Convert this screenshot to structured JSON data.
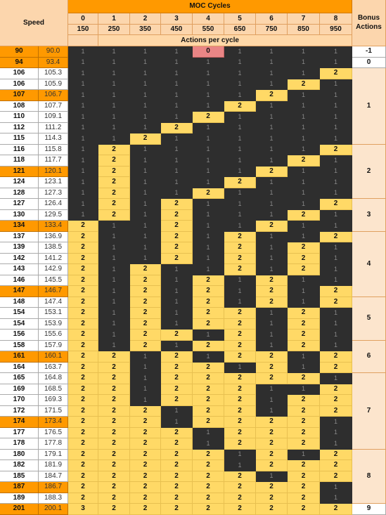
{
  "header": {
    "speed_label": "Speed",
    "moc_label": "MOC Cycles",
    "actions_label": "Actions per cycle",
    "bonus_label": "Bonus\nActions",
    "cycles": [
      "0",
      "1",
      "2",
      "3",
      "4",
      "5",
      "6",
      "7",
      "8"
    ],
    "cycle_values": [
      "150",
      "250",
      "350",
      "450",
      "550",
      "650",
      "750",
      "850",
      "950"
    ]
  },
  "rows": [
    {
      "speed": "90",
      "value": "90.0",
      "hl": true,
      "actions": [
        "1",
        "1",
        "1",
        "1",
        "0",
        "1",
        "1",
        "1",
        "1"
      ]
    },
    {
      "speed": "94",
      "value": "93.4",
      "hl": true,
      "actions": [
        "1",
        "1",
        "1",
        "1",
        "1",
        "1",
        "1",
        "1",
        "1"
      ]
    },
    {
      "speed": "106",
      "value": "105.3",
      "hl": false,
      "actions": [
        "1",
        "1",
        "1",
        "1",
        "1",
        "1",
        "1",
        "1",
        "2"
      ]
    },
    {
      "speed": "106",
      "value": "105.9",
      "hl": false,
      "actions": [
        "1",
        "1",
        "1",
        "1",
        "1",
        "1",
        "1",
        "2",
        "1"
      ]
    },
    {
      "speed": "107",
      "value": "106.7",
      "hl": true,
      "actions": [
        "1",
        "1",
        "1",
        "1",
        "1",
        "1",
        "2",
        "1",
        "1"
      ]
    },
    {
      "speed": "108",
      "value": "107.7",
      "hl": false,
      "actions": [
        "1",
        "1",
        "1",
        "1",
        "1",
        "2",
        "1",
        "1",
        "1"
      ]
    },
    {
      "speed": "110",
      "value": "109.1",
      "hl": false,
      "actions": [
        "1",
        "1",
        "1",
        "1",
        "2",
        "1",
        "1",
        "1",
        "1"
      ]
    },
    {
      "speed": "112",
      "value": "111.2",
      "hl": false,
      "actions": [
        "1",
        "1",
        "1",
        "2",
        "1",
        "1",
        "1",
        "1",
        "1"
      ]
    },
    {
      "speed": "115",
      "value": "114.3",
      "hl": false,
      "actions": [
        "1",
        "1",
        "2",
        "1",
        "1",
        "1",
        "1",
        "1",
        "1"
      ]
    },
    {
      "speed": "116",
      "value": "115.8",
      "hl": false,
      "actions": [
        "1",
        "2",
        "1",
        "1",
        "1",
        "1",
        "1",
        "1",
        "2"
      ]
    },
    {
      "speed": "118",
      "value": "117.7",
      "hl": false,
      "actions": [
        "1",
        "2",
        "1",
        "1",
        "1",
        "1",
        "1",
        "2",
        "1"
      ]
    },
    {
      "speed": "121",
      "value": "120.1",
      "hl": true,
      "actions": [
        "1",
        "2",
        "1",
        "1",
        "1",
        "1",
        "2",
        "1",
        "1"
      ]
    },
    {
      "speed": "124",
      "value": "123.1",
      "hl": false,
      "actions": [
        "1",
        "2",
        "1",
        "1",
        "1",
        "2",
        "1",
        "1",
        "1"
      ]
    },
    {
      "speed": "128",
      "value": "127.3",
      "hl": false,
      "actions": [
        "1",
        "2",
        "1",
        "1",
        "2",
        "1",
        "1",
        "1",
        "1"
      ]
    },
    {
      "speed": "127",
      "value": "126.4",
      "hl": false,
      "actions": [
        "1",
        "2",
        "1",
        "2",
        "1",
        "1",
        "1",
        "1",
        "2"
      ]
    },
    {
      "speed": "130",
      "value": "129.5",
      "hl": false,
      "actions": [
        "1",
        "2",
        "1",
        "2",
        "1",
        "1",
        "1",
        "2",
        "1"
      ]
    },
    {
      "speed": "134",
      "value": "133.4",
      "hl": true,
      "actions": [
        "2",
        "1",
        "1",
        "2",
        "1",
        "1",
        "2",
        "1",
        "1"
      ]
    },
    {
      "speed": "137",
      "value": "136.9",
      "hl": false,
      "actions": [
        "2",
        "1",
        "1",
        "2",
        "1",
        "2",
        "1",
        "1",
        "2"
      ]
    },
    {
      "speed": "139",
      "value": "138.5",
      "hl": false,
      "actions": [
        "2",
        "1",
        "1",
        "2",
        "1",
        "2",
        "1",
        "2",
        "1"
      ]
    },
    {
      "speed": "142",
      "value": "141.2",
      "hl": false,
      "actions": [
        "2",
        "1",
        "1",
        "2",
        "1",
        "2",
        "1",
        "2",
        "1"
      ]
    },
    {
      "speed": "143",
      "value": "142.9",
      "hl": false,
      "actions": [
        "2",
        "1",
        "2",
        "1",
        "1",
        "2",
        "1",
        "2",
        "1"
      ]
    },
    {
      "speed": "146",
      "value": "145.5",
      "hl": false,
      "actions": [
        "2",
        "1",
        "2",
        "1",
        "2",
        "1",
        "2",
        "1",
        "1"
      ]
    },
    {
      "speed": "147",
      "value": "146.7",
      "hl": true,
      "actions": [
        "2",
        "1",
        "2",
        "1",
        "2",
        "1",
        "2",
        "1",
        "2"
      ]
    },
    {
      "speed": "148",
      "value": "147.4",
      "hl": false,
      "actions": [
        "2",
        "1",
        "2",
        "1",
        "2",
        "1",
        "2",
        "1",
        "2"
      ]
    },
    {
      "speed": "154",
      "value": "153.1",
      "hl": false,
      "actions": [
        "2",
        "1",
        "2",
        "1",
        "2",
        "2",
        "1",
        "2",
        "1"
      ]
    },
    {
      "speed": "154",
      "value": "153.9",
      "hl": false,
      "actions": [
        "2",
        "1",
        "2",
        "1",
        "2",
        "2",
        "1",
        "2",
        "1"
      ]
    },
    {
      "speed": "156",
      "value": "155.6",
      "hl": false,
      "actions": [
        "2",
        "1",
        "2",
        "2",
        "1",
        "2",
        "1",
        "2",
        "1"
      ]
    },
    {
      "speed": "158",
      "value": "157.9",
      "hl": false,
      "actions": [
        "2",
        "1",
        "2",
        "1",
        "2",
        "2",
        "1",
        "2",
        "1"
      ]
    },
    {
      "speed": "161",
      "value": "160.1",
      "hl": true,
      "actions": [
        "2",
        "2",
        "1",
        "2",
        "1",
        "2",
        "2",
        "1",
        "2"
      ]
    },
    {
      "speed": "164",
      "value": "163.7",
      "hl": false,
      "actions": [
        "2",
        "2",
        "1",
        "2",
        "2",
        "1",
        "2",
        "1",
        "2"
      ]
    },
    {
      "speed": "165",
      "value": "164.8",
      "hl": false,
      "actions": [
        "2",
        "2",
        "1",
        "2",
        "2",
        "2",
        "2",
        "2",
        "1"
      ]
    },
    {
      "speed": "169",
      "value": "168.5",
      "hl": false,
      "actions": [
        "2",
        "2",
        "1",
        "2",
        "2",
        "2",
        "1",
        "1",
        "2"
      ]
    },
    {
      "speed": "170",
      "value": "169.3",
      "hl": false,
      "actions": [
        "2",
        "2",
        "1",
        "2",
        "2",
        "2",
        "1",
        "2",
        "2"
      ]
    },
    {
      "speed": "172",
      "value": "171.5",
      "hl": false,
      "actions": [
        "2",
        "2",
        "2",
        "1",
        "2",
        "2",
        "1",
        "2",
        "2"
      ]
    },
    {
      "speed": "174",
      "value": "173.4",
      "hl": true,
      "actions": [
        "2",
        "2",
        "2",
        "1",
        "2",
        "2",
        "2",
        "2",
        "1"
      ]
    },
    {
      "speed": "177",
      "value": "176.5",
      "hl": false,
      "actions": [
        "2",
        "2",
        "2",
        "2",
        "1",
        "2",
        "2",
        "2",
        "1"
      ]
    },
    {
      "speed": "178",
      "value": "177.8",
      "hl": false,
      "actions": [
        "2",
        "2",
        "2",
        "2",
        "1",
        "2",
        "2",
        "2",
        "1"
      ]
    },
    {
      "speed": "180",
      "value": "179.1",
      "hl": false,
      "actions": [
        "2",
        "2",
        "2",
        "2",
        "2",
        "1",
        "2",
        "1",
        "2"
      ]
    },
    {
      "speed": "182",
      "value": "181.9",
      "hl": false,
      "actions": [
        "2",
        "2",
        "2",
        "2",
        "2",
        "1",
        "2",
        "2",
        "2"
      ]
    },
    {
      "speed": "185",
      "value": "184.7",
      "hl": false,
      "actions": [
        "2",
        "2",
        "2",
        "2",
        "2",
        "2",
        "1",
        "2",
        "2"
      ]
    },
    {
      "speed": "187",
      "value": "186.7",
      "hl": true,
      "actions": [
        "2",
        "2",
        "2",
        "2",
        "2",
        "2",
        "2",
        "2",
        "1"
      ]
    },
    {
      "speed": "189",
      "value": "188.3",
      "hl": false,
      "actions": [
        "2",
        "2",
        "2",
        "2",
        "2",
        "2",
        "2",
        "2",
        "1"
      ]
    },
    {
      "speed": "201",
      "value": "200.1",
      "hl": true,
      "actions": [
        "3",
        "2",
        "2",
        "2",
        "2",
        "2",
        "2",
        "2",
        "2"
      ]
    }
  ],
  "bonus": [
    {
      "label": "-1",
      "rows": 1
    },
    {
      "label": "0",
      "rows": 1
    },
    {
      "label": "1",
      "rows": 7
    },
    {
      "label": "2",
      "rows": 5
    },
    {
      "label": "3",
      "rows": 3
    },
    {
      "label": "4",
      "rows": 6
    },
    {
      "label": "5",
      "rows": 4
    },
    {
      "label": "6",
      "rows": 3
    },
    {
      "label": "7",
      "rows": 7
    },
    {
      "label": "8",
      "rows": 5
    },
    {
      "label": "9",
      "rows": 1
    }
  ],
  "colors": {
    "orange": "#ff9900",
    "yellow": "#ffd966",
    "dark": "#2e2e2e",
    "peach": "#fce5cd",
    "red": "#e98585"
  }
}
